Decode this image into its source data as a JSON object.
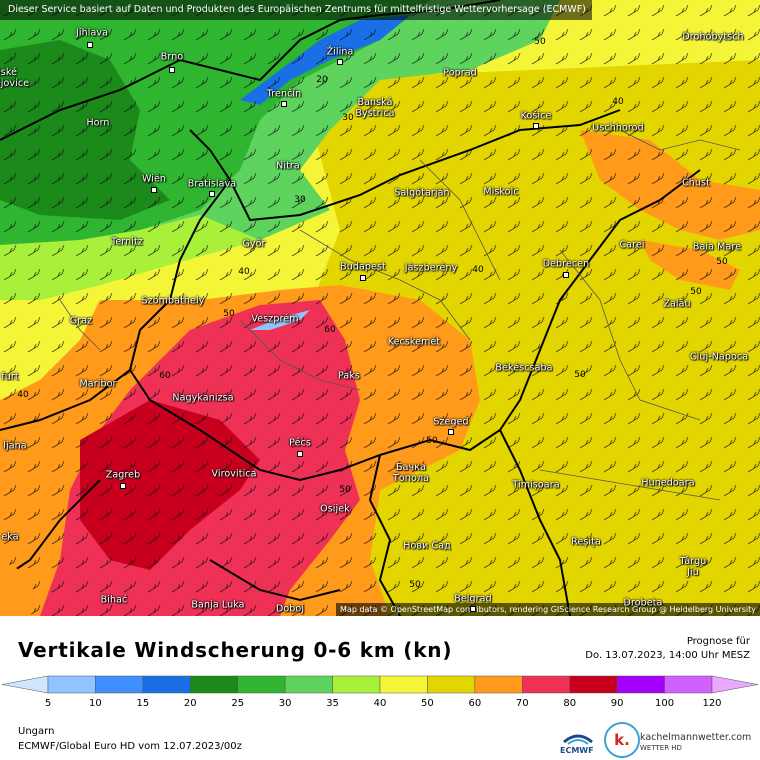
{
  "notice": "Dieser Service basiert auf Daten und Produkten des Europäischen Zentrums für mittelfristige Wettervorhersage (ECMWF)",
  "attribution": "Map data © OpenStreetMap contributors, rendering GIScience Research Group @ Heidelberg University",
  "title": "Vertikale Windscherung 0-6 km (kn)",
  "forecast": {
    "label": "Prognose für",
    "valid": "Do. 13.07.2023, 14:00 Uhr MESZ"
  },
  "region": "Ungarn",
  "model": "ECMWF/Global Euro HD vom  12.07.2023/00z",
  "branding": {
    "ecmwf": "ECMWF",
    "site": "kachelmannwetter.com",
    "tagline": "WETTER HD",
    "logo_letter": "k."
  },
  "scale": {
    "ticks": [
      "5",
      "10",
      "15",
      "20",
      "25",
      "30",
      "35",
      "40",
      "50",
      "60",
      "70",
      "80",
      "90",
      "100",
      "120"
    ],
    "colors": [
      "#cfe6ff",
      "#8ec4ff",
      "#3f8fff",
      "#1a6fe6",
      "#1b8a1b",
      "#2fb52f",
      "#5ed45e",
      "#a9f03a",
      "#f5f537",
      "#e3d600",
      "#ff9a1a",
      "#ee3155",
      "#c8001e",
      "#a400ff",
      "#d061ff",
      "#eaa9ff"
    ]
  },
  "cities": [
    {
      "name": "Jihlava"
    },
    {
      "name": "Brno"
    },
    {
      "name": "Žilina"
    },
    {
      "name": "Poprad"
    },
    {
      "name": "Drohobytsch"
    },
    {
      "name": "eské\nějovice"
    },
    {
      "name": "Trenčín"
    },
    {
      "name": "Banská\nBystrica"
    },
    {
      "name": "Košice"
    },
    {
      "name": "Horn"
    },
    {
      "name": "Uschhorod"
    },
    {
      "name": "Nitra"
    },
    {
      "name": "Wien"
    },
    {
      "name": "Bratislava"
    },
    {
      "name": "Salgótarján"
    },
    {
      "name": "Miskolc"
    },
    {
      "name": "Chust"
    },
    {
      "name": "Ternitz"
    },
    {
      "name": "Győr"
    },
    {
      "name": "Carei"
    },
    {
      "name": "Baia Mare"
    },
    {
      "name": "Budapest"
    },
    {
      "name": "Jászberény"
    },
    {
      "name": "Debrecen"
    },
    {
      "name": "Szombathely"
    },
    {
      "name": "Zalău"
    },
    {
      "name": "Graz"
    },
    {
      "name": "Veszprém"
    },
    {
      "name": "Kecskemét"
    },
    {
      "name": "Cluj-Napoca"
    },
    {
      "name": "Maribor"
    },
    {
      "name": "Paks"
    },
    {
      "name": "Békéscsaba"
    },
    {
      "name": "Nagykanizsa"
    },
    {
      "name": "Szeged"
    },
    {
      "name": "Pécs"
    },
    {
      "name": "Бачка\nТопола"
    },
    {
      "name": "Zagreb"
    },
    {
      "name": "Virovitica"
    },
    {
      "name": "Timișoara"
    },
    {
      "name": "Hunedoara"
    },
    {
      "name": "Osijek"
    },
    {
      "name": "Reșița"
    },
    {
      "name": "Нови Сад"
    },
    {
      "name": "Târgu\nJiu"
    },
    {
      "name": "Bihać"
    },
    {
      "name": "Banja Luka"
    },
    {
      "name": "Doboj"
    },
    {
      "name": "Belgrad"
    },
    {
      "name": "Drobeta"
    },
    {
      "name": "furt"
    },
    {
      "name": "ljana"
    },
    {
      "name": "eka"
    }
  ],
  "contour_labels": [
    "50",
    "20",
    "30",
    "30",
    "40",
    "40",
    "50",
    "40",
    "40",
    "50",
    "50",
    "60",
    "60",
    "50",
    "50",
    "50",
    "50"
  ]
}
